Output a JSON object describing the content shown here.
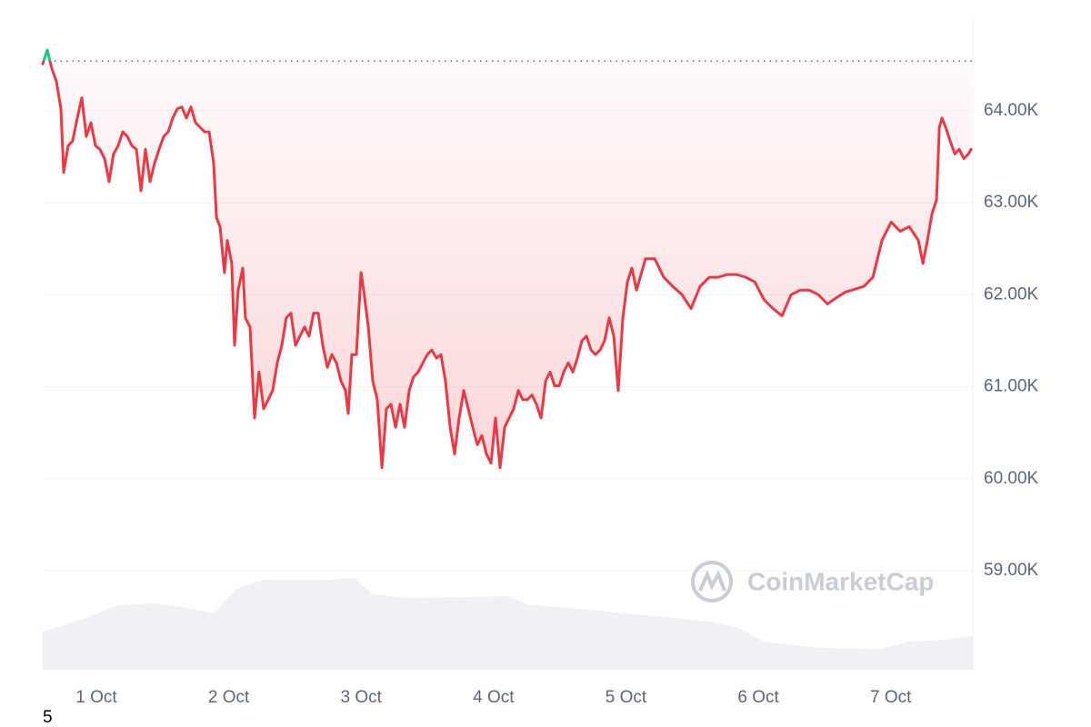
{
  "chart_data": {
    "type": "line",
    "x": [
      0.595,
      0.629,
      0.663,
      0.698,
      0.732,
      0.753,
      0.787,
      0.821,
      0.856,
      0.89,
      0.924,
      0.959,
      0.993,
      1.027,
      1.062,
      1.096,
      1.13,
      1.165,
      1.199,
      1.234,
      1.268,
      1.302,
      1.337,
      1.371,
      1.405,
      1.44,
      1.474,
      1.508,
      1.543,
      1.577,
      1.611,
      1.646,
      1.68,
      1.714,
      1.749,
      1.783,
      1.817,
      1.852,
      1.886,
      1.907,
      1.934,
      1.968,
      1.989,
      2.023,
      2.044,
      2.071,
      2.106,
      2.126,
      2.161,
      2.195,
      2.229,
      2.264,
      2.298,
      2.332,
      2.367,
      2.401,
      2.435,
      2.47,
      2.504,
      2.538,
      2.573,
      2.607,
      2.641,
      2.676,
      2.71,
      2.745,
      2.779,
      2.813,
      2.848,
      2.882,
      2.902,
      2.93,
      2.964,
      2.999,
      3.019,
      3.054,
      3.088,
      3.122,
      3.157,
      3.191,
      3.225,
      3.26,
      3.294,
      3.328,
      3.363,
      3.397,
      3.431,
      3.466,
      3.5,
      3.534,
      3.569,
      3.603,
      3.637,
      3.672,
      3.706,
      3.74,
      3.775,
      3.809,
      3.843,
      3.878,
      3.912,
      3.946,
      3.981,
      4.015,
      4.049,
      4.084,
      4.118,
      4.152,
      4.187,
      4.221,
      4.255,
      4.29,
      4.324,
      4.359,
      4.393,
      4.427,
      4.462,
      4.496,
      4.53,
      4.565,
      4.599,
      4.633,
      4.668,
      4.702,
      4.736,
      4.771,
      4.805,
      4.839,
      4.874,
      4.908,
      4.942,
      4.977,
      5.011,
      5.045,
      5.08,
      5.148,
      5.217,
      5.286,
      5.354,
      5.423,
      5.492,
      5.56,
      5.629,
      5.698,
      5.766,
      5.835,
      5.904,
      5.973,
      6.041,
      6.11,
      6.179,
      6.247,
      6.316,
      6.385,
      6.453,
      6.522,
      6.591,
      6.659,
      6.728,
      6.797,
      6.865,
      6.934,
      7.003,
      7.071,
      7.14,
      7.209,
      7.243,
      7.277,
      7.312,
      7.346,
      7.367,
      7.387,
      7.415,
      7.449,
      7.484,
      7.518,
      7.552,
      7.587,
      7.607
    ],
    "series": [
      {
        "color": "#ea3943",
        "values": [
          64510,
          64660,
          64460,
          64320,
          64020,
          63330,
          63620,
          63670,
          63920,
          64140,
          63720,
          63870,
          63620,
          63580,
          63480,
          63230,
          63530,
          63620,
          63770,
          63720,
          63620,
          63580,
          63130,
          63580,
          63230,
          63430,
          63580,
          63720,
          63770,
          63920,
          64020,
          64040,
          63920,
          64040,
          63870,
          63820,
          63770,
          63770,
          63430,
          62840,
          62740,
          62240,
          62590,
          62340,
          61450,
          62050,
          62290,
          61750,
          61650,
          60660,
          61160,
          60760,
          60860,
          60960,
          61260,
          61450,
          61750,
          61800,
          61450,
          61550,
          61650,
          61550,
          61800,
          61800,
          61450,
          61210,
          61350,
          61260,
          61060,
          60960,
          60710,
          61350,
          61350,
          62240,
          62050,
          61650,
          61060,
          60860,
          60120,
          60760,
          60810,
          60560,
          60810,
          60560,
          60960,
          61110,
          61160,
          61260,
          61350,
          61400,
          61310,
          61350,
          61060,
          60560,
          60270,
          60660,
          60960,
          60760,
          60560,
          60370,
          60470,
          60270,
          60170,
          60660,
          60120,
          60560,
          60660,
          60760,
          60960,
          60860,
          60860,
          60910,
          60810,
          60660,
          61060,
          61160,
          61010,
          61010,
          61160,
          61260,
          61160,
          61310,
          61500,
          61550,
          61400,
          61350,
          61400,
          61500,
          61750,
          61550,
          60960,
          61750,
          62140,
          62290,
          62050,
          62390,
          62390,
          62190,
          62090,
          62000,
          61850,
          62090,
          62190,
          62190,
          62220,
          62220,
          62190,
          62140,
          61950,
          61850,
          61770,
          62000,
          62050,
          62050,
          62000,
          61900,
          61970,
          62030,
          62060,
          62090,
          62190,
          62590,
          62790,
          62690,
          62740,
          62590,
          62340,
          62590,
          62880,
          63030,
          63820,
          63920,
          63820,
          63670,
          63530,
          63580,
          63480,
          63530,
          63580
        ]
      }
    ],
    "above_reference_color": "#16c784",
    "reference_value": 64540,
    "xlim": [
      0.595,
      7.62
    ],
    "xticks": [
      {
        "value": 1,
        "label": "1 Oct"
      },
      {
        "value": 2,
        "label": "2 Oct"
      },
      {
        "value": 3,
        "label": "3 Oct"
      },
      {
        "value": 4,
        "label": "4 Oct"
      },
      {
        "value": 5,
        "label": "5 Oct"
      },
      {
        "value": 6,
        "label": "6 Oct"
      },
      {
        "value": 7,
        "label": "7 Oct"
      }
    ],
    "ylim": [
      57925,
      65025
    ],
    "yticks": [
      {
        "value": 59000,
        "label": "59.00K"
      },
      {
        "value": 60000,
        "label": "60.00K"
      },
      {
        "value": 61000,
        "label": "61.00K"
      },
      {
        "value": 62000,
        "label": "62.00K"
      },
      {
        "value": 63000,
        "label": "63.00K"
      },
      {
        "value": 64000,
        "label": "64.00K"
      }
    ],
    "grid": true,
    "watermark": "CoinMarketCap",
    "footnote": "5"
  }
}
